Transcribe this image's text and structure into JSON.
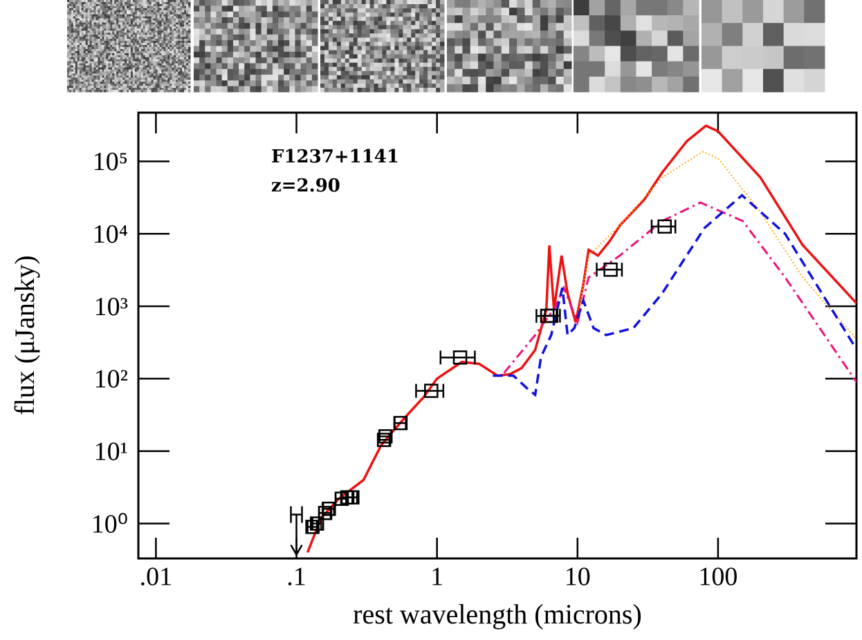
{
  "chart_data": {
    "type": "line",
    "annotations": [
      "F1237+1141",
      "z=2.90"
    ],
    "xlabel": "rest wavelength (microns)",
    "ylabel": "flux (μJansky)",
    "xscale": "log",
    "yscale": "log",
    "xlim": [
      0.0075,
      966
    ],
    "ylim": [
      0.33,
      470000
    ],
    "xticks": [
      {
        "value": 0.01,
        "label": ".01"
      },
      {
        "value": 0.1,
        "label": ".1"
      },
      1,
      10,
      100
    ],
    "yticks": [
      {
        "value": 1,
        "label": "10⁰"
      },
      {
        "value": 10,
        "label": "10¹"
      },
      {
        "value": 100,
        "label": "10²"
      },
      {
        "value": 1000,
        "label": "10³"
      },
      {
        "value": 10000,
        "label": "10⁴"
      },
      {
        "value": 100000,
        "label": "10⁵"
      }
    ],
    "photometry": {
      "color": "#000000",
      "x": [
        0.13,
        0.14,
        0.16,
        0.17,
        0.21,
        0.23,
        0.25,
        0.42,
        0.43,
        0.55,
        0.91,
        1.46,
        6.1,
        6.5,
        17.2,
        41.7
      ],
      "y": [
        0.9,
        1.0,
        1.4,
        1.6,
        2.2,
        2.3,
        2.3,
        14.3,
        16,
        24.4,
        68,
        196,
        735,
        740,
        3200,
        12600
      ],
      "xerr": [
        0.01,
        0.01,
        0.015,
        0.015,
        0.02,
        0.02,
        0.02,
        0.04,
        0.04,
        0.05,
        0.2,
        0.4,
        1.0,
        1.0,
        3.5,
        8
      ]
    },
    "upper_limit": {
      "x": 0.1,
      "y": 1.33,
      "color": "#000000"
    },
    "models": [
      {
        "color": "#ee1111",
        "style": "solid",
        "x": [
          0.12,
          0.15,
          0.2,
          0.3,
          0.4,
          0.5,
          0.6,
          0.8,
          1,
          1.5,
          2,
          2.7,
          3.3,
          4,
          5,
          6,
          6.3,
          6.8,
          7.7,
          8.5,
          9.7,
          11,
          12,
          14,
          17,
          20,
          30,
          40,
          60,
          82,
          100,
          200,
          400,
          966
        ],
        "y": [
          0.4,
          1.2,
          2.2,
          4,
          12,
          20,
          30,
          55,
          100,
          170,
          160,
          110,
          115,
          140,
          250,
          900,
          6900,
          900,
          5000,
          1500,
          600,
          2000,
          6000,
          5000,
          8000,
          13000,
          30000,
          70000,
          190000,
          310000,
          260000,
          60000,
          7000,
          1100
        ]
      },
      {
        "color": "#ffa500",
        "style": "dotted",
        "x": [
          10,
          12,
          20,
          40,
          78,
          100,
          200,
          400,
          966
        ],
        "y": [
          700,
          5000,
          13000,
          60000,
          136000,
          110000,
          20000,
          2500,
          355
        ]
      },
      {
        "color": "#ee1177",
        "style": "dashdot",
        "x": [
          3,
          5,
          7,
          8,
          10,
          12,
          20,
          40,
          75,
          150,
          300,
          966
        ],
        "y": [
          120,
          400,
          1000,
          1800,
          600,
          2500,
          5000,
          15000,
          27000,
          15000,
          2500,
          90
        ]
      },
      {
        "color": "#1111dd",
        "style": "dashed",
        "x": [
          2.5,
          3.5,
          4.5,
          5,
          5.5,
          6.5,
          7.8,
          8.5,
          9.5,
          11,
          13,
          16,
          25,
          40,
          80,
          148,
          300,
          966
        ],
        "y": [
          110,
          110,
          70,
          60,
          200,
          400,
          1800,
          400,
          500,
          1200,
          500,
          400,
          500,
          1500,
          12000,
          34000,
          10000,
          255
        ]
      }
    ]
  }
}
